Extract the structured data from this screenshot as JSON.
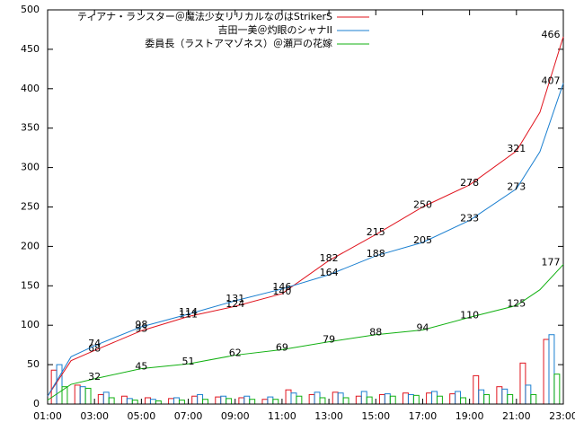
{
  "chart_data": {
    "type": "line",
    "xlim": [
      1,
      23
    ],
    "xticks": [
      {
        "value": 1,
        "label": "01:00"
      },
      {
        "value": 3,
        "label": "03:00"
      },
      {
        "value": 5,
        "label": "05:00"
      },
      {
        "value": 7,
        "label": "07:00"
      },
      {
        "value": 9,
        "label": "09:00"
      },
      {
        "value": 11,
        "label": "11:00"
      },
      {
        "value": 13,
        "label": "13:00"
      },
      {
        "value": 15,
        "label": "15:00"
      },
      {
        "value": 17,
        "label": "17:00"
      },
      {
        "value": 19,
        "label": "19:00"
      },
      {
        "value": 21,
        "label": "21:00"
      },
      {
        "value": 23,
        "label": "23:00"
      }
    ],
    "ylim": [
      0,
      500
    ],
    "yticks": [
      0,
      50,
      100,
      150,
      200,
      250,
      300,
      350,
      400,
      450,
      500
    ],
    "legend": "top-left",
    "x": [
      1,
      2,
      3,
      5,
      7,
      9,
      11,
      13,
      15,
      17,
      19,
      21,
      22,
      23
    ],
    "series": [
      {
        "name": "ティアナ・ランスター＠魔法少女リリカルなのはStrikerS",
        "color": "#e0141e",
        "values": [
          10,
          55,
          68,
          93,
          111,
          124,
          140,
          182,
          215,
          250,
          278,
          321,
          370,
          466
        ],
        "value_labels": [
          null,
          null,
          "68",
          "93",
          "111",
          "124",
          "140",
          "182",
          "215",
          "250",
          "278",
          "321",
          null,
          "466"
        ]
      },
      {
        "name": "吉田一美＠灼眼のシャナII",
        "color": "#1a7fd0",
        "values": [
          10,
          60,
          74,
          98,
          114,
          131,
          146,
          164,
          188,
          205,
          233,
          273,
          320,
          407
        ],
        "value_labels": [
          null,
          null,
          "74",
          "98",
          "114",
          "131",
          "146",
          "164",
          "188",
          "205",
          "233",
          "273",
          null,
          "407"
        ]
      },
      {
        "name": "委員長（ラストアマゾネス）＠瀬戸の花嫁",
        "color": "#10b010",
        "values": [
          5,
          25,
          32,
          45,
          51,
          62,
          69,
          79,
          88,
          94,
          110,
          125,
          145,
          177
        ],
        "value_labels": [
          null,
          null,
          "32",
          "45",
          "51",
          "62",
          "69",
          "79",
          "88",
          "94",
          "110",
          "125",
          null,
          "177"
        ]
      }
    ],
    "bars": {
      "x": [
        1.5,
        2.5,
        3.5,
        4.5,
        5.5,
        6.5,
        7.5,
        8.5,
        9.5,
        10.5,
        11.5,
        12.5,
        13.5,
        14.5,
        15.5,
        16.5,
        17.5,
        18.5,
        19.5,
        20.5,
        21.5,
        22.5
      ],
      "series": [
        {
          "color": "#e0141e",
          "values": [
            43,
            24,
            12,
            10,
            8,
            7,
            10,
            9,
            8,
            6,
            18,
            12,
            15,
            10,
            12,
            14,
            14,
            13,
            36,
            22,
            52,
            82
          ]
        },
        {
          "color": "#1a7fd0",
          "values": [
            50,
            22,
            15,
            7,
            6,
            8,
            12,
            10,
            10,
            9,
            14,
            15,
            14,
            16,
            13,
            12,
            16,
            16,
            18,
            19,
            24,
            88
          ]
        },
        {
          "color": "#10b010",
          "values": [
            22,
            20,
            8,
            5,
            4,
            5,
            6,
            7,
            6,
            6,
            10,
            8,
            8,
            9,
            10,
            11,
            10,
            8,
            12,
            12,
            12,
            38
          ]
        }
      ]
    }
  }
}
